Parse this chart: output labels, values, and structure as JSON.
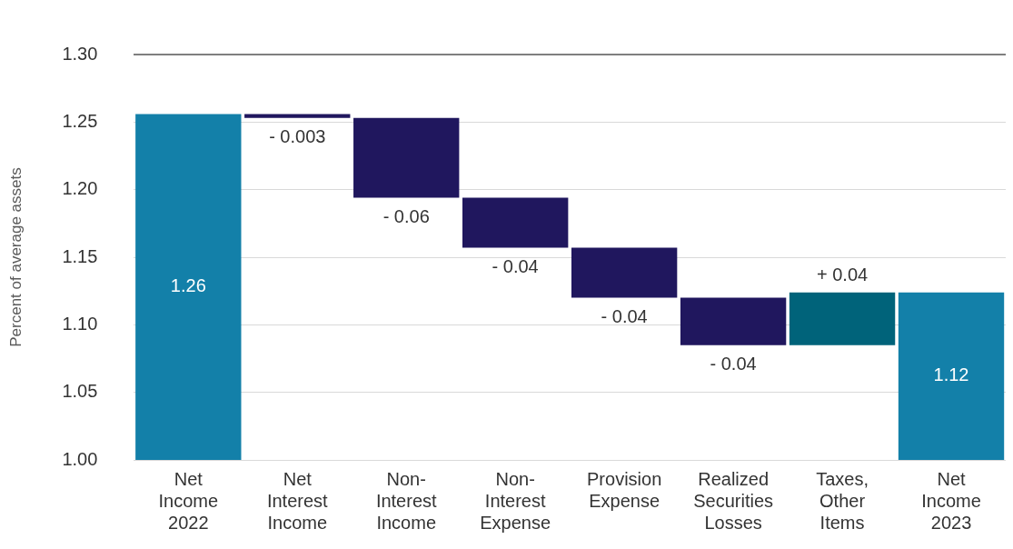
{
  "chart_data": {
    "type": "bar",
    "ylabel": "Percent of average assets",
    "categories": [
      "Net Income 2022",
      "Net Interest Income",
      "Non-Interest Income",
      "Non-Interest Expense",
      "Provision Expense",
      "Realized Securities Losses",
      "Taxes, Other Items",
      "Net Income 2023"
    ],
    "values": [
      1.256,
      -0.003,
      -0.059,
      -0.037,
      -0.037,
      -0.035,
      0.039,
      1.124
    ],
    "base": [
      0,
      1.256,
      1.253,
      1.194,
      1.157,
      1.12,
      1.085,
      0
    ],
    "colors": [
      "#1380a9",
      "#20175e",
      "#20175e",
      "#20175e",
      "#20175e",
      "#20175e",
      "#00637a",
      "#1380a9"
    ],
    "value_labels": [
      "1.26",
      "- 0.003",
      "- 0.06",
      "- 0.04",
      "- 0.04",
      "- 0.04",
      "+ 0.04",
      "1.12"
    ],
    "ylim": [
      1.0,
      1.3
    ],
    "yticks": [
      {
        "value": 1.0,
        "label": "1.00"
      },
      {
        "value": 1.05,
        "label": "1.05"
      },
      {
        "value": 1.1,
        "label": "1.10"
      },
      {
        "value": 1.15,
        "label": "1.15"
      },
      {
        "value": 1.2,
        "label": "1.20"
      },
      {
        "value": 1.25,
        "label": "1.25"
      },
      {
        "value": 1.3,
        "label": "1.30"
      }
    ],
    "grid": "y",
    "legend": false
  }
}
